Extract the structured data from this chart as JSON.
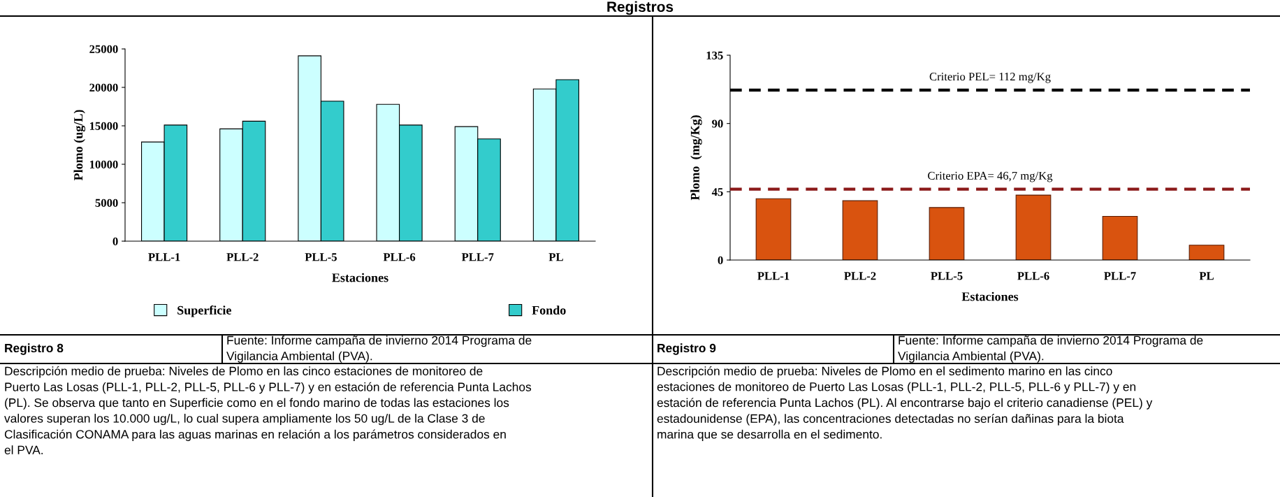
{
  "chart_data": [
    {
      "type": "bar",
      "xlabel": "Estaciones",
      "ylabel": "Plomo (ug/L)",
      "categories": [
        "PLL-1",
        "PLL-2",
        "PLL-5",
        "PLL-6",
        "PLL-7",
        "PL"
      ],
      "series": [
        {
          "name": "Superficie",
          "color": "#ccffff",
          "values": [
            12900,
            14600,
            24100,
            17800,
            14900,
            19800
          ]
        },
        {
          "name": "Fondo",
          "color": "#33cccc",
          "values": [
            15100,
            15600,
            18200,
            15100,
            13300,
            21000
          ]
        }
      ],
      "ylim": [
        0,
        25000
      ],
      "yticks": [
        0,
        5000,
        10000,
        15000,
        20000,
        25000
      ],
      "grid": false,
      "legend": "bottom",
      "annotations": [
        "Registros",
        "Registro 8",
        "Fuente: Informe campaña de invierno 2014 Programa de\nVigilancia Ambiental (PVA).",
        "Descripción medio de prueba: Niveles de Plomo en las cinco estaciones de monitoreo de\nPuerto Las Losas (PLL-1, PLL-2, PLL-5, PLL-6 y PLL-7) y en estación de referencia Punta Lachos\n(PL). Se observa que tanto en Superficie como en el fondo marino de todas las estaciones los\nvalores superan los 10.000 ug/L, lo cual supera ampliamente los 50 ug/L de la Clase 3 de\nClasificación CONAMA para las aguas marinas en relación a los parámetros considerados en\nel PVA."
      ]
    },
    {
      "type": "bar",
      "xlabel": "Estaciones",
      "ylabel": "Plomo  (mg/Kg)",
      "categories": [
        "PLL-1",
        "PLL-2",
        "PLL-5",
        "PLL-6",
        "PLL-7",
        "PL"
      ],
      "values": [
        40.4,
        39.1,
        34.6,
        42.8,
        28.8,
        9.8
      ],
      "color": "#d9530f",
      "ylim": [
        0,
        135
      ],
      "yticks": [
        0,
        45,
        90,
        135
      ],
      "grid": false,
      "ref_lines": [
        {
          "axis": "y",
          "value": 112,
          "label": "Criterio PEL= 112 mg/Kg",
          "color": "#000000",
          "line_style": "dashed"
        },
        {
          "axis": "y",
          "value": 46.7,
          "label": "Criterio EPA= 46,7 mg/Kg",
          "color": "#8b1a1a",
          "line_style": "dashed"
        }
      ],
      "annotations": [
        "Registro 9",
        "Fuente: Informe campaña de invierno 2014 Programa de\nVigilancia Ambiental (PVA).",
        "Descripción medio de prueba: Niveles de Plomo en el sedimento marino en las cinco\nestaciones de monitoreo de Puerto Las Losas (PLL-1, PLL-2, PLL-5, PLL-6 y PLL-7) y en\nestación de referencia Punta Lachos (PL). Al encontrarse bajo el criterio canadiense (PEL) y\nestadounidense (EPA), las concentraciones detectadas no serían dañinas para la biota\nmarina que se desarrolla en el sedimento."
      ]
    }
  ]
}
